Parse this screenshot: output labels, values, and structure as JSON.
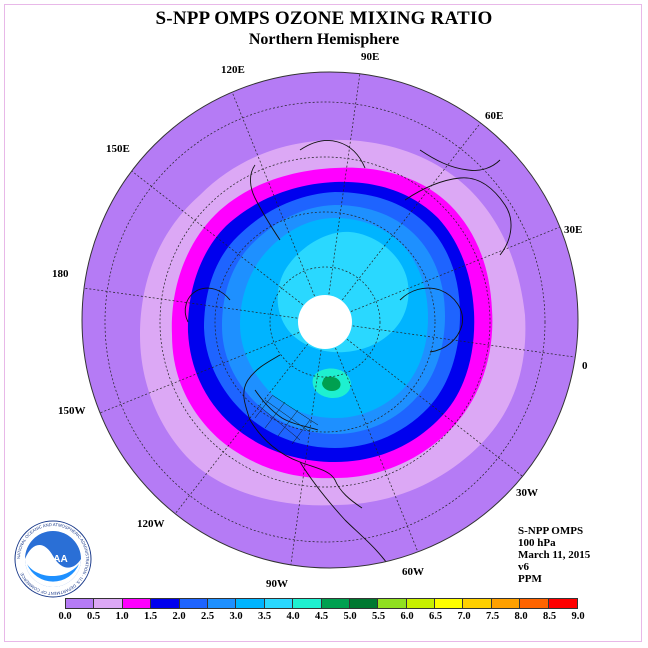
{
  "header": {
    "title": "S-NPP OMPS OZONE MIXING RATIO",
    "subtitle": "Northern Hemisphere"
  },
  "map": {
    "projection": "polar-stereographic-north",
    "longitude_labels": [
      "90E",
      "60E",
      "30E",
      "0",
      "30W",
      "60W",
      "90W",
      "120W",
      "150W",
      "180",
      "150E",
      "120E"
    ],
    "field": "ozone mixing ratio",
    "pole_no_data": true
  },
  "info": {
    "instrument": "S-NPP OMPS",
    "level": "100 hPa",
    "date": "March 11, 2015",
    "version": "v6",
    "units": "PPM"
  },
  "colorbar": {
    "ticks": [
      "0.0",
      "0.5",
      "1.0",
      "1.5",
      "2.0",
      "2.5",
      "3.0",
      "3.5",
      "4.0",
      "4.5",
      "5.0",
      "5.5",
      "6.0",
      "6.5",
      "7.0",
      "7.5",
      "8.0",
      "8.5",
      "9.0"
    ],
    "colors": [
      "#b57bf5",
      "#dca8f5",
      "#ff00ff",
      "#0000ee",
      "#1e64ff",
      "#1e90ff",
      "#00b4ff",
      "#2ad8ff",
      "#1ef0d0",
      "#00a050",
      "#007830",
      "#90e020",
      "#c8f000",
      "#ffff00",
      "#ffd000",
      "#ffa000",
      "#ff6400",
      "#ff0000",
      "#8c5a46"
    ]
  },
  "logo": {
    "name": "noaa-logo",
    "text": "NOAA",
    "ring_text": "NATIONAL OCEANIC AND ATMOSPHERIC ADMINISTRATION · U.S. DEPARTMENT OF COMMERCE"
  }
}
